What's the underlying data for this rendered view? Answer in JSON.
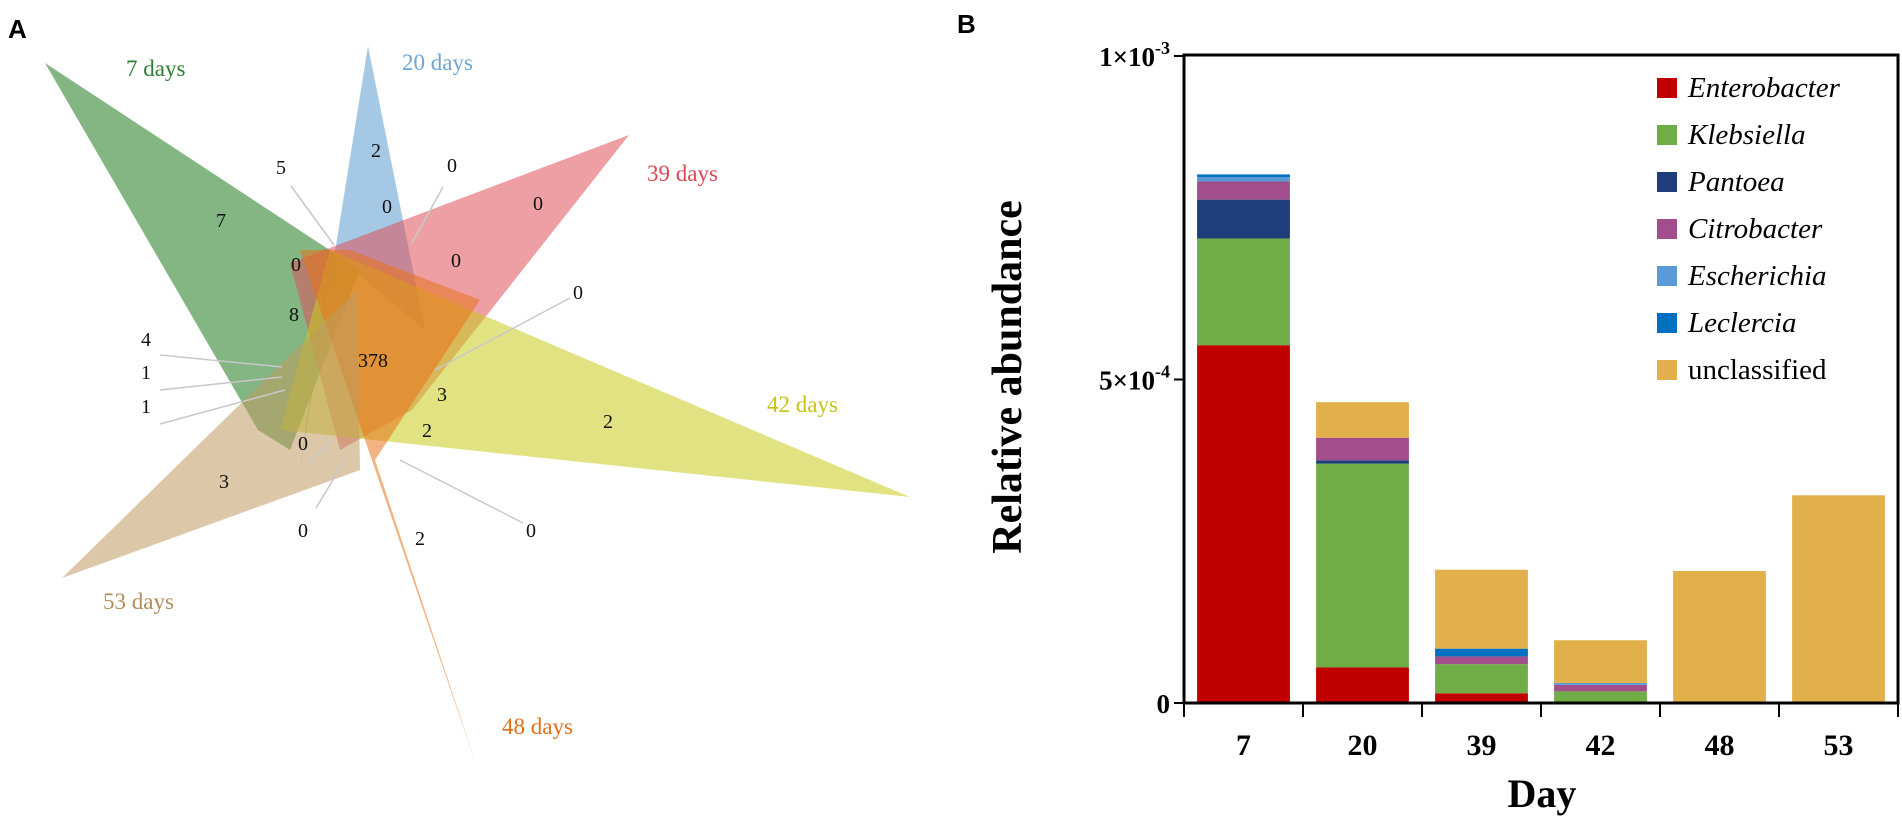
{
  "panel_a": {
    "label": "A",
    "sets": [
      {
        "name": "7 days",
        "color": "#1e7a1e"
      },
      {
        "name": "20 days",
        "color": "#5b9bd0"
      },
      {
        "name": "39 days",
        "color": "#e0505a"
      },
      {
        "name": "42 days",
        "color": "#c9cc1e"
      },
      {
        "name": "48 days",
        "color": "#e8731a"
      },
      {
        "name": "53 days",
        "color": "#c09a60"
      }
    ],
    "label_colors": {
      "7 days": "#2e7d32",
      "20 days": "#6ea5d2",
      "39 days": "#d9474f",
      "42 days": "#c8c21a",
      "48 days": "#e06f1a",
      "53 days": "#b08d5a"
    },
    "numbers": [
      "7",
      "2",
      "0",
      "2",
      "3",
      "3",
      "2",
      "2",
      "0",
      "0",
      "0",
      "0",
      "5",
      "0",
      "0",
      "8",
      "378",
      "4",
      "1",
      "1",
      "0",
      "0"
    ]
  },
  "panel_b": {
    "label": "B"
  },
  "chart_data": {
    "type": "bar",
    "stacked": true,
    "xlabel": "Day",
    "ylabel": "Relative abundance",
    "ylim": [
      0,
      0.001
    ],
    "yticks": [
      {
        "value": 0,
        "mantissa": "0",
        "exponent": ""
      },
      {
        "value": 0.0005,
        "mantissa": "5×10",
        "exponent": "-4"
      },
      {
        "value": 0.001,
        "mantissa": "1×10",
        "exponent": "-3"
      }
    ],
    "categories": [
      "7",
      "20",
      "39",
      "42",
      "48",
      "53"
    ],
    "legend_position": "top-right",
    "series": [
      {
        "name": "Enterobacter",
        "italic": true,
        "color": "#c00000",
        "values": [
          0.000553,
          5.5e-05,
          1.5e-05,
          0.0,
          0.0,
          0.0
        ]
      },
      {
        "name": "Klebsiella",
        "italic": true,
        "color": "#70ad47",
        "values": [
          0.000165,
          0.000315,
          4.5e-05,
          1.8e-05,
          0.0,
          0.0
        ]
      },
      {
        "name": "Pantoea",
        "italic": true,
        "color": "#1f3d7a",
        "values": [
          6e-05,
          5e-06,
          0.0,
          0.0,
          0.0,
          0.0
        ]
      },
      {
        "name": "Citrobacter",
        "italic": true,
        "color": "#a24d8c",
        "values": [
          2.8e-05,
          3.5e-05,
          1.2e-05,
          1e-05,
          0.0,
          0.0
        ]
      },
      {
        "name": "Escherichia",
        "italic": true,
        "color": "#5b9bd5",
        "values": [
          7e-06,
          0.0,
          0.0,
          3e-06,
          0.0,
          0.0
        ]
      },
      {
        "name": "Leclercia",
        "italic": true,
        "color": "#0070c0",
        "values": [
          4e-06,
          0.0,
          1.2e-05,
          0.0,
          0.0,
          0.0
        ]
      },
      {
        "name": "unclassified",
        "italic": false,
        "color": "#e2b04a",
        "values": [
          0.0,
          5.5e-05,
          0.000122,
          6.6e-05,
          0.000204,
          0.000321
        ]
      }
    ]
  }
}
